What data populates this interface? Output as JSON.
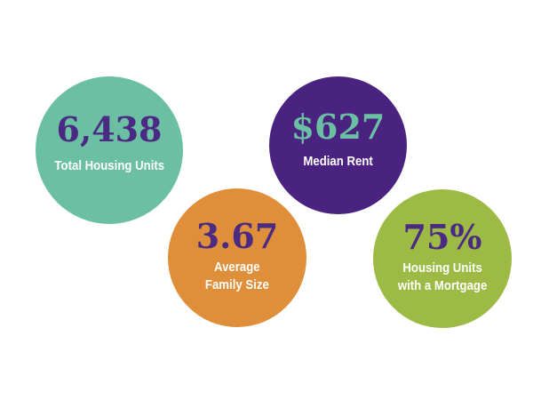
{
  "stats": [
    {
      "id": "total-units",
      "value": "6,438",
      "label_line1": "Total Housing Units",
      "label_line2": "",
      "circle_color": "#6bbfa2",
      "value_color": "#4a2a82"
    },
    {
      "id": "median-rent",
      "value": "$627",
      "label_line1": "Median Rent",
      "label_line2": "",
      "circle_color": "#4a2280",
      "value_color": "#6bbfa2"
    },
    {
      "id": "family-size",
      "value": "3.67",
      "label_line1": "Average",
      "label_line2": "Family Size",
      "circle_color": "#df8e39",
      "value_color": "#4a2a82"
    },
    {
      "id": "mortgage",
      "value": "75%",
      "label_line1": "Housing Units",
      "label_line2": "with a Mortgage",
      "circle_color": "#9dbb44",
      "value_color": "#4a2a82"
    }
  ]
}
